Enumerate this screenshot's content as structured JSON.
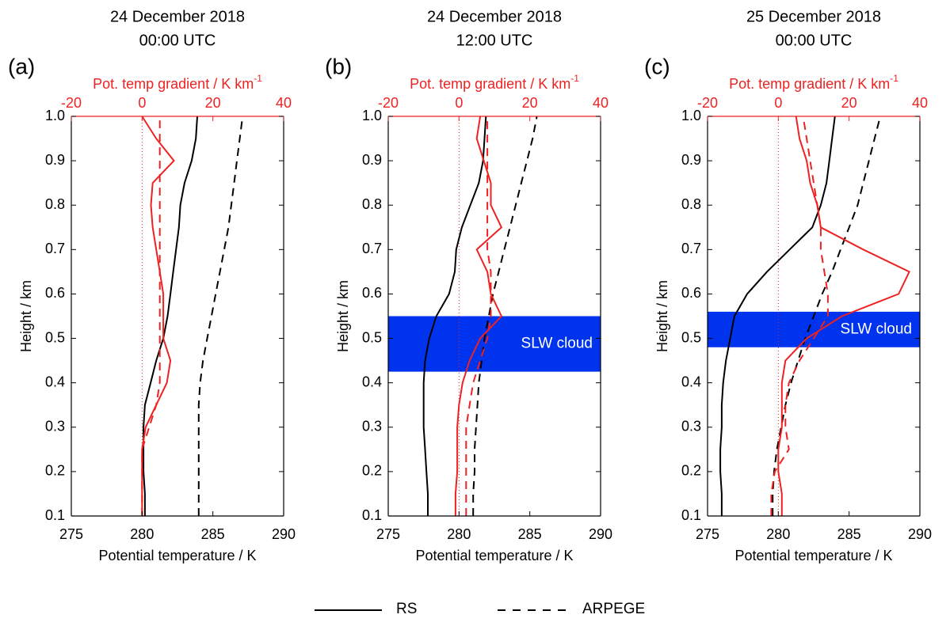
{
  "chart_data": [
    {
      "type": "line",
      "title": "24 December 2018",
      "subtitle": "00:00 UTC",
      "panel_label": "(a)",
      "xlabel": "Potential temperature / K",
      "x2label": "Pot. temp gradient / K km",
      "x2label_sup": "-1",
      "ylabel": "Height / km",
      "xlim": [
        275,
        290
      ],
      "xticks": [
        275,
        280,
        285,
        290
      ],
      "x2lim": [
        -20,
        40
      ],
      "x2ticks": [
        -20,
        0,
        20,
        40
      ],
      "ylim": [
        0.1,
        1
      ],
      "yticks": [
        0.1,
        0.2,
        0.3,
        0.4,
        0.5,
        0.6,
        0.7,
        0.8,
        0.9,
        {
          "value": 1,
          "label": "1.0"
        }
      ],
      "zero_line": true,
      "y": [
        0.1,
        0.15,
        0.2,
        0.25,
        0.3,
        0.35,
        0.4,
        0.45,
        0.5,
        0.55,
        0.6,
        0.65,
        0.7,
        0.75,
        0.8,
        0.85,
        0.9,
        0.95,
        1
      ],
      "series": [
        {
          "axis": "x",
          "color": "#000000",
          "style": "solid",
          "values": [
            280.2,
            280.2,
            280.1,
            280.1,
            280.1,
            280.2,
            280.6,
            281.0,
            281.5,
            281.8,
            282.0,
            282.2,
            282.4,
            282.6,
            282.7,
            283.0,
            283.5,
            283.8,
            283.9
          ]
        },
        {
          "axis": "x",
          "color": "#000000",
          "style": "dashed",
          "values": [
            284.0,
            284.0,
            284.0,
            284.0,
            284.0,
            284.0,
            284.1,
            284.3,
            284.6,
            284.9,
            285.2,
            285.5,
            285.8,
            286.1,
            286.3,
            286.5,
            286.7,
            286.9,
            287.1
          ]
        },
        {
          "axis": "x2",
          "color": "#ee2222",
          "style": "solid",
          "values": [
            0,
            0,
            0,
            0,
            1,
            4,
            7,
            8,
            6,
            6,
            6,
            5,
            4,
            3,
            2.5,
            3,
            9,
            4,
            0
          ]
        },
        {
          "axis": "x2",
          "color": "#ee2222",
          "style": "dashed",
          "values": [
            0,
            0,
            0,
            0,
            2,
            4,
            5,
            5,
            5,
            5,
            5,
            5,
            5,
            5,
            5,
            5,
            5,
            5,
            5
          ]
        }
      ]
    },
    {
      "type": "line",
      "title": "24 December 2018",
      "subtitle": "12:00 UTC",
      "panel_label": "(b)",
      "xlabel": "Potential temperature / K",
      "x2label": "Pot. temp gradient / K km",
      "x2label_sup": "-1",
      "ylabel": "Height / km",
      "xlim": [
        275,
        290
      ],
      "xticks": [
        275,
        280,
        285,
        290
      ],
      "x2lim": [
        -20,
        40
      ],
      "x2ticks": [
        -20,
        0,
        20,
        40
      ],
      "ylim": [
        0.1,
        1
      ],
      "yticks": [
        0.1,
        0.2,
        0.3,
        0.4,
        0.5,
        0.6,
        0.7,
        0.8,
        0.9,
        {
          "value": 1,
          "label": "1.0"
        }
      ],
      "zero_line": true,
      "cloud": {
        "label": "SLW cloud",
        "range": [
          0.425,
          0.55
        ],
        "color": "#0033ee"
      },
      "y": [
        0.1,
        0.15,
        0.2,
        0.25,
        0.3,
        0.35,
        0.4,
        0.45,
        0.5,
        0.55,
        0.6,
        0.65,
        0.7,
        0.75,
        0.8,
        0.85,
        0.9,
        0.95,
        1
      ],
      "series": [
        {
          "axis": "x",
          "color": "#000000",
          "style": "solid",
          "values": [
            277.8,
            277.8,
            277.7,
            277.6,
            277.5,
            277.5,
            277.5,
            277.6,
            277.9,
            278.4,
            279.3,
            279.7,
            279.8,
            280.2,
            280.8,
            281.4,
            281.7,
            281.8,
            281.9
          ]
        },
        {
          "axis": "x",
          "color": "#000000",
          "style": "dashed",
          "values": [
            281.0,
            281.0,
            281.1,
            281.1,
            281.2,
            281.3,
            281.4,
            281.6,
            281.8,
            282.1,
            282.4,
            282.8,
            283.2,
            283.6,
            284.0,
            284.4,
            284.8,
            285.2,
            285.5
          ]
        },
        {
          "axis": "x2",
          "color": "#ee2222",
          "style": "solid",
          "values": [
            -1,
            -1,
            -0.5,
            -0.5,
            -0.5,
            0,
            1,
            3,
            6,
            12,
            9,
            8,
            5,
            12,
            9,
            9,
            7,
            5,
            6
          ]
        },
        {
          "axis": "x2",
          "color": "#ee2222",
          "style": "dashed",
          "values": [
            2,
            2,
            2,
            2,
            2,
            3,
            4,
            6,
            8,
            9,
            9,
            9,
            8,
            8,
            8,
            8,
            8,
            8,
            8
          ]
        }
      ]
    },
    {
      "type": "line",
      "title": "25 December 2018",
      "subtitle": "00:00 UTC",
      "panel_label": "(c)",
      "xlabel": "Potential temperature / K",
      "x2label": "Pot. temp gradient / K km",
      "x2label_sup": "-1",
      "ylabel": "Height / km",
      "xlim": [
        275,
        290
      ],
      "xticks": [
        275,
        280,
        285,
        290
      ],
      "x2lim": [
        -20,
        40
      ],
      "x2ticks": [
        -20,
        0,
        20,
        40
      ],
      "ylim": [
        0.1,
        1
      ],
      "yticks": [
        0.1,
        0.2,
        0.3,
        0.4,
        0.5,
        0.6,
        0.7,
        0.8,
        0.9,
        {
          "value": 1,
          "label": "1.0"
        }
      ],
      "zero_line": true,
      "cloud": {
        "label": "SLW cloud",
        "range": [
          0.48,
          0.56
        ],
        "color": "#0033ee"
      },
      "y": [
        0.1,
        0.15,
        0.2,
        0.25,
        0.3,
        0.35,
        0.4,
        0.45,
        0.5,
        0.55,
        0.6,
        0.65,
        0.7,
        0.75,
        0.8,
        0.85,
        0.9,
        0.95,
        1
      ],
      "series": [
        {
          "axis": "x",
          "color": "#000000",
          "style": "solid",
          "values": [
            276.0,
            276.0,
            275.9,
            275.9,
            276.0,
            276.0,
            276.1,
            276.3,
            276.6,
            276.9,
            277.8,
            279.2,
            280.8,
            282.4,
            283.0,
            283.4,
            283.6,
            283.8,
            284.0
          ]
        },
        {
          "axis": "x",
          "color": "#000000",
          "style": "dashed",
          "values": [
            279.6,
            279.6,
            279.7,
            279.9,
            280.2,
            280.5,
            280.9,
            281.4,
            281.9,
            282.5,
            283.1,
            283.8,
            284.4,
            285.0,
            285.6,
            286.0,
            286.4,
            286.8,
            287.2
          ]
        },
        {
          "axis": "x2",
          "color": "#ee2222",
          "style": "solid",
          "values": [
            1,
            1,
            0,
            0,
            1,
            1,
            1,
            2,
            8,
            18,
            34,
            37,
            24,
            12,
            11,
            9,
            8,
            6,
            5
          ]
        },
        {
          "axis": "x2",
          "color": "#ee2222",
          "style": "dashed",
          "values": [
            -2,
            -2,
            -1,
            3,
            2,
            2,
            3,
            6,
            10,
            14,
            14,
            13,
            12,
            12,
            11,
            10,
            9,
            8,
            7
          ]
        }
      ]
    }
  ],
  "legend": [
    {
      "name": "RS",
      "style": "solid",
      "color": "#000000"
    },
    {
      "name": "ARPEGE",
      "style": "dashed",
      "color": "#000000"
    }
  ]
}
